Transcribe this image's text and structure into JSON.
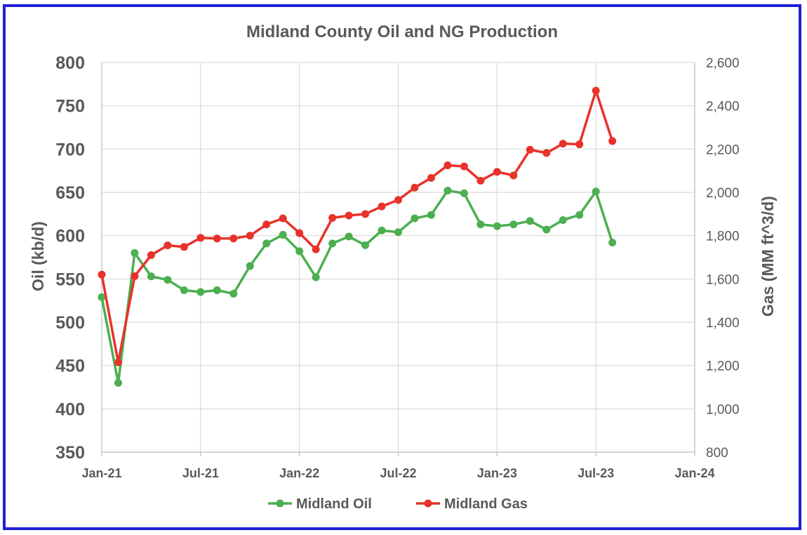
{
  "chart_data": {
    "type": "line",
    "title": "Midland County Oil and NG Production",
    "y_left_label": "Oil (kb/d)",
    "y_right_label": "Gas (MM ft^3/d)",
    "y_left_range": [
      350,
      800
    ],
    "y_left_ticks": [
      "350",
      "400",
      "450",
      "500",
      "550",
      "600",
      "650",
      "700",
      "750",
      "800"
    ],
    "y_right_range": [
      800,
      2600
    ],
    "y_right_ticks": [
      "800",
      "1,000",
      "1,200",
      "1,400",
      "1,600",
      "1,800",
      "2,000",
      "2,200",
      "2,400",
      "2,600"
    ],
    "x_range": [
      "2021-01",
      "2024-01"
    ],
    "x_ticks": [
      "Jan-21",
      "Jul-21",
      "Jan-22",
      "Jul-22",
      "Jan-23",
      "Jul-23",
      "Jan-24"
    ],
    "grid": true,
    "legend_position": "bottom",
    "x": [
      "2021-01",
      "2021-02",
      "2021-03",
      "2021-04",
      "2021-05",
      "2021-06",
      "2021-07",
      "2021-08",
      "2021-09",
      "2021-10",
      "2021-11",
      "2021-12",
      "2022-01",
      "2022-02",
      "2022-03",
      "2022-04",
      "2022-05",
      "2022-06",
      "2022-07",
      "2022-08",
      "2022-09",
      "2022-10",
      "2022-11",
      "2022-12",
      "2023-01",
      "2023-02",
      "2023-03",
      "2023-04",
      "2023-05",
      "2023-06",
      "2023-07",
      "2023-08"
    ],
    "series": [
      {
        "name": "Midland Oil",
        "axis": "left",
        "color": "#4caf50",
        "values": [
          529,
          430,
          580,
          553,
          549,
          537,
          535,
          537,
          533,
          565,
          591,
          601,
          582,
          552,
          591,
          599,
          589,
          606,
          604,
          620,
          624,
          652,
          649,
          613,
          611,
          613,
          617,
          607,
          618,
          624,
          651,
          592
        ]
      },
      {
        "name": "Midland Gas",
        "axis": "right",
        "color": "#e8322a",
        "values": [
          1620,
          1215,
          1613,
          1710,
          1755,
          1748,
          1790,
          1787,
          1787,
          1800,
          1852,
          1880,
          1812,
          1737,
          1882,
          1893,
          1900,
          1935,
          1965,
          2022,
          2067,
          2125,
          2120,
          2054,
          2095,
          2078,
          2197,
          2182,
          2225,
          2222,
          2470,
          2237
        ]
      }
    ]
  }
}
